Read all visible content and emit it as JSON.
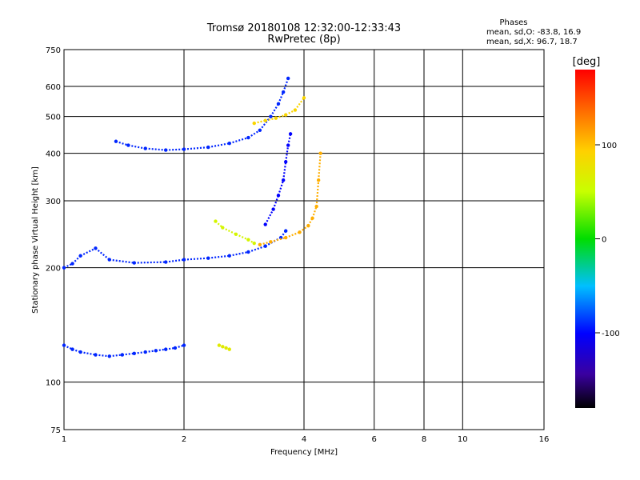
{
  "chart_data": {
    "type": "scatter",
    "title": "Tromsø 20180108 12:32:00-12:33:43",
    "subtitle": "RwPretec (8p)",
    "xlabel": "Frequency [MHz]",
    "ylabel": "Stationary phase Virtual Height [km]",
    "x_scale": "log2",
    "y_scale": "log",
    "xlim": [
      1,
      16
    ],
    "ylim": [
      75,
      750
    ],
    "x_ticks": [
      1,
      2,
      4,
      6,
      8,
      10,
      16
    ],
    "x_tick_labels": [
      "1",
      "2",
      "4",
      "6",
      "8",
      "10",
      "16"
    ],
    "y_ticks": [
      75,
      100,
      200,
      300,
      400,
      500,
      600,
      750
    ],
    "y_tick_labels": [
      "75",
      "100",
      "200",
      "300",
      "400",
      "500",
      "600",
      "750"
    ],
    "grid": true,
    "stats": {
      "heading": "Phases",
      "o_line": "mean, sd,O: -83.8, 16.9",
      "x_line": "mean, sd,X:  96.7, 18.7"
    },
    "colorbar": {
      "label": "[deg]",
      "ticks": [
        100,
        0,
        -100
      ],
      "tick_labels": [
        "100",
        "0",
        "-100"
      ],
      "range": [
        -180,
        180
      ]
    },
    "traces": [
      {
        "phase": -90,
        "x": [
          1.0,
          1.05,
          1.1,
          1.2,
          1.3,
          1.4,
          1.5,
          1.6,
          1.7,
          1.8,
          1.9,
          2.0
        ],
        "y": [
          125,
          122,
          120,
          118,
          117,
          118,
          119,
          120,
          121,
          122,
          123,
          125
        ]
      },
      {
        "phase": -90,
        "x": [
          1.0,
          1.05,
          1.1,
          1.2,
          1.3,
          1.5,
          1.8,
          2.0,
          2.3,
          2.6,
          2.9,
          3.2,
          3.5,
          3.6
        ],
        "y": [
          200,
          205,
          215,
          225,
          210,
          206,
          207,
          210,
          212,
          215,
          220,
          228,
          240,
          250
        ]
      },
      {
        "phase": -100,
        "x": [
          3.2,
          3.35,
          3.45,
          3.55,
          3.6,
          3.65,
          3.7
        ],
        "y": [
          260,
          285,
          310,
          340,
          380,
          420,
          450
        ]
      },
      {
        "phase": -90,
        "x": [
          1.35,
          1.45,
          1.6,
          1.8,
          2.0,
          2.3,
          2.6,
          2.9,
          3.1,
          3.3,
          3.45,
          3.55,
          3.65
        ],
        "y": [
          430,
          420,
          412,
          408,
          410,
          415,
          425,
          440,
          460,
          500,
          540,
          580,
          630
        ]
      },
      {
        "phase": 110,
        "x": [
          3.1,
          3.3,
          3.6,
          3.9,
          4.1,
          4.2,
          4.3,
          4.35,
          4.4
        ],
        "y": [
          230,
          234,
          240,
          248,
          258,
          270,
          290,
          340,
          400
        ]
      },
      {
        "phase": 90,
        "x": [
          3.0,
          3.2,
          3.4,
          3.6,
          3.8,
          4.0
        ],
        "y": [
          480,
          488,
          495,
          505,
          520,
          560
        ]
      },
      {
        "phase": 60,
        "x": [
          2.4,
          2.5,
          2.7,
          2.9,
          3.0
        ],
        "y": [
          265,
          255,
          245,
          237,
          232
        ]
      },
      {
        "phase": 70,
        "x": [
          2.45,
          2.5,
          2.55,
          2.6
        ],
        "y": [
          125,
          124,
          123,
          122
        ]
      }
    ]
  }
}
